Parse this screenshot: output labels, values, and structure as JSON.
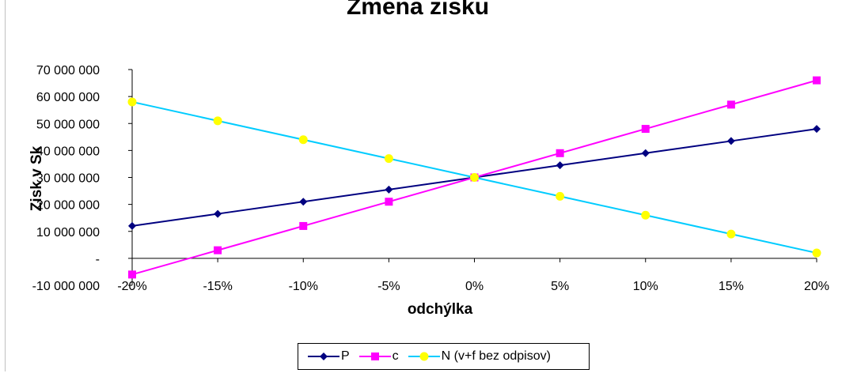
{
  "chart_data": {
    "type": "line",
    "title": "Zmena zisku",
    "xlabel": "odchýlka",
    "ylabel": "Zisk v Sk",
    "categories": [
      "-20%",
      "-15%",
      "-10%",
      "-5%",
      "0%",
      "5%",
      "10%",
      "15%",
      "20%"
    ],
    "ylim": [
      -10000000,
      70000000
    ],
    "y_ticks": [
      {
        "value": 70000000,
        "label": "70 000 000"
      },
      {
        "value": 60000000,
        "label": "60 000 000"
      },
      {
        "value": 50000000,
        "label": "50 000 000"
      },
      {
        "value": 40000000,
        "label": "40 000 000"
      },
      {
        "value": 30000000,
        "label": "30 000 000"
      },
      {
        "value": 20000000,
        "label": "20 000 000"
      },
      {
        "value": 10000000,
        "label": "10 000 000"
      },
      {
        "value": 0,
        "label": "-"
      },
      {
        "value": -10000000,
        "label": "-10 000 000"
      }
    ],
    "grid": false,
    "legend_position": "bottom",
    "series": [
      {
        "name": "P",
        "color": "#000080",
        "marker": "diamond",
        "values": [
          12000000,
          16500000,
          21000000,
          25500000,
          30000000,
          34500000,
          39000000,
          43500000,
          48000000
        ]
      },
      {
        "name": "c",
        "color": "#FF00FF",
        "marker": "square",
        "values": [
          -6000000,
          3000000,
          12000000,
          21000000,
          30000000,
          39000000,
          48000000,
          57000000,
          66000000
        ]
      },
      {
        "name": "N (v+f bez odpisov)",
        "color": "#00CCFF",
        "marker": "circle",
        "marker_color": "#FFFF00",
        "values": [
          58000000,
          51000000,
          44000000,
          37000000,
          30000000,
          23000000,
          16000000,
          9000000,
          2000000
        ]
      }
    ]
  }
}
